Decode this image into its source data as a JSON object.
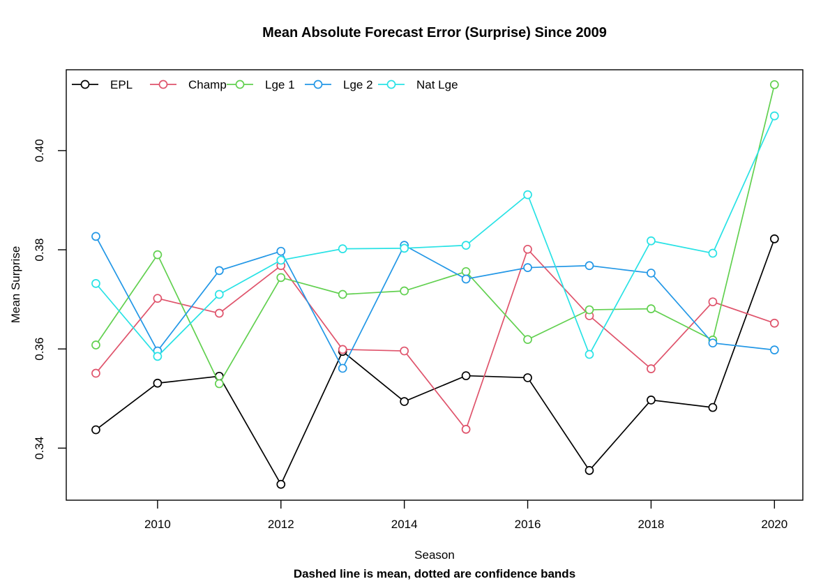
{
  "title": "Mean Absolute Forecast Error (Surprise) Since 2009",
  "xlabel": "Season",
  "ylabel": "Mean Surprise",
  "subtitle": "Dashed line is mean, dotted are confidence bands",
  "colors": {
    "EPL": "#000000",
    "Champ": "#DF536B",
    "Lge 1": "#61D04F",
    "Lge 2": "#2297E6",
    "Nat Lge": "#28E2E5"
  },
  "chart_data": {
    "type": "line",
    "title": "Mean Absolute Forecast Error (Surprise) Since 2009",
    "xlabel": "Season",
    "ylabel": "Mean Surprise",
    "annotation": "Dashed line is mean, dotted are confidence bands",
    "marker": "open-circle",
    "grid": false,
    "legend_position": "top-left-horizontal",
    "x": [
      2009,
      2010,
      2011,
      2012,
      2013,
      2014,
      2015,
      2016,
      2017,
      2018,
      2019,
      2020
    ],
    "series": [
      {
        "name": "EPL",
        "color": "#000000",
        "values": [
          0.3437,
          0.3531,
          0.3545,
          0.3327,
          0.3595,
          0.3494,
          0.3546,
          0.3542,
          0.3355,
          0.3497,
          0.3482,
          0.3822
        ]
      },
      {
        "name": "Champ",
        "color": "#DF536B",
        "values": [
          0.3551,
          0.3702,
          0.3672,
          0.3768,
          0.3599,
          0.3596,
          0.3438,
          0.3801,
          0.3667,
          0.356,
          0.3695,
          0.3652
        ]
      },
      {
        "name": "Lge 1",
        "color": "#61D04F",
        "values": [
          0.3608,
          0.379,
          0.353,
          0.3744,
          0.371,
          0.3717,
          0.3756,
          0.3619,
          0.3679,
          0.3681,
          0.3618,
          0.4133
        ]
      },
      {
        "name": "Lge 2",
        "color": "#2297E6",
        "values": [
          0.3827,
          0.3596,
          0.3758,
          0.3797,
          0.3561,
          0.3809,
          0.3741,
          0.3764,
          0.3768,
          0.3753,
          0.3612,
          0.3598
        ]
      },
      {
        "name": "Nat Lge",
        "color": "#28E2E5",
        "values": [
          0.3732,
          0.3585,
          0.371,
          0.3779,
          0.3802,
          0.3803,
          0.3809,
          0.3911,
          0.3589,
          0.3818,
          0.3793,
          0.407
        ]
      }
    ],
    "xticks": [
      2010,
      2012,
      2014,
      2016,
      2018,
      2020
    ],
    "yticks": [
      0.34,
      0.36,
      0.38,
      0.4
    ],
    "xlim": [
      2008.52,
      2020.46
    ],
    "ylim": [
      0.3295,
      0.4163
    ]
  }
}
